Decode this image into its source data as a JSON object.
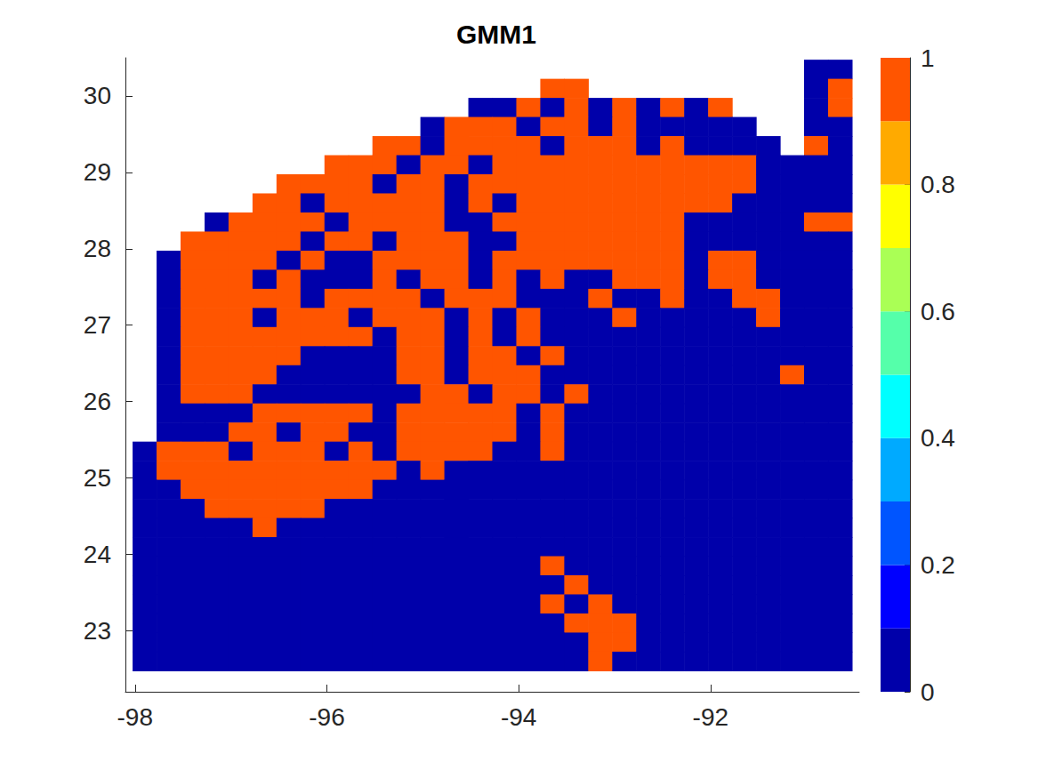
{
  "chart_data": {
    "type": "heatmap",
    "title": "GMM1",
    "xlim": [
      -98.1,
      -90.45
    ],
    "ylim": [
      22.2,
      30.5
    ],
    "xticks": [
      -98,
      -96,
      -94,
      -92
    ],
    "yticks": [
      23,
      24,
      25,
      26,
      27,
      28,
      29,
      30
    ],
    "grid": false,
    "colorbar": {
      "range": [
        0,
        1
      ],
      "ticks": [
        0,
        0.2,
        0.4,
        0.6,
        0.8,
        1
      ],
      "colors": [
        "#0000aa",
        "#0000ff",
        "#0055ff",
        "#00aaff",
        "#00ffff",
        "#55ffaa",
        "#aaff55",
        "#ffff00",
        "#ffaa00",
        "#ff5500"
      ]
    },
    "cells": {
      "lon": [
        -97.9,
        -97.65,
        -97.4,
        -97.15,
        -96.9,
        -96.65,
        -96.4,
        -96.15,
        -95.9,
        -95.65,
        -95.4,
        -95.15,
        -94.9,
        -94.65,
        -94.4,
        -94.15,
        -93.9,
        -93.65,
        -93.4,
        -93.15,
        -92.9,
        -92.65,
        -92.4,
        -92.15,
        -91.9,
        -91.65,
        -91.4,
        -91.15,
        -90.9,
        -90.65
      ],
      "lat": [
        30.35,
        30.1,
        29.85,
        29.6,
        29.35,
        29.1,
        28.85,
        28.6,
        28.35,
        28.1,
        27.85,
        27.6,
        27.35,
        27.1,
        26.85,
        26.6,
        26.35,
        26.1,
        25.85,
        25.6,
        25.35,
        25.1,
        24.85,
        24.6,
        24.35,
        24.1,
        23.85,
        23.6,
        23.35,
        23.1,
        22.85,
        22.6
      ],
      "values": [
        [
          null,
          null,
          null,
          null,
          null,
          null,
          null,
          null,
          null,
          null,
          null,
          null,
          null,
          null,
          null,
          null,
          null,
          null,
          null,
          null,
          null,
          null,
          null,
          null,
          null,
          null,
          null,
          null,
          0,
          0
        ],
        [
          null,
          null,
          null,
          null,
          null,
          null,
          null,
          null,
          null,
          null,
          null,
          null,
          null,
          null,
          null,
          null,
          null,
          1,
          1,
          null,
          null,
          null,
          null,
          null,
          null,
          null,
          null,
          null,
          0,
          1
        ],
        [
          null,
          null,
          null,
          null,
          null,
          null,
          null,
          null,
          null,
          null,
          null,
          null,
          null,
          null,
          0,
          0,
          1,
          0,
          1,
          0,
          1,
          0,
          1,
          0,
          1,
          null,
          null,
          null,
          0,
          1
        ],
        [
          null,
          null,
          null,
          null,
          null,
          null,
          null,
          null,
          null,
          null,
          null,
          null,
          0,
          1,
          1,
          1,
          0,
          1,
          1,
          0,
          1,
          0,
          0,
          0,
          0,
          0,
          null,
          null,
          0,
          0
        ],
        [
          null,
          null,
          null,
          null,
          null,
          null,
          null,
          null,
          null,
          null,
          1,
          1,
          0,
          1,
          1,
          1,
          1,
          0,
          1,
          1,
          1,
          0,
          1,
          0,
          0,
          0,
          0,
          null,
          1,
          0
        ],
        [
          null,
          null,
          null,
          null,
          null,
          null,
          null,
          null,
          1,
          1,
          1,
          0,
          1,
          1,
          0,
          1,
          1,
          1,
          1,
          1,
          1,
          1,
          1,
          1,
          1,
          1,
          0,
          0,
          0,
          0
        ],
        [
          null,
          null,
          null,
          null,
          null,
          null,
          1,
          1,
          1,
          1,
          0,
          1,
          1,
          0,
          1,
          1,
          1,
          1,
          1,
          1,
          1,
          1,
          1,
          1,
          1,
          1,
          0,
          0,
          0,
          0
        ],
        [
          null,
          null,
          null,
          null,
          null,
          1,
          1,
          0,
          1,
          1,
          1,
          1,
          1,
          0,
          1,
          0,
          1,
          1,
          1,
          1,
          1,
          1,
          1,
          1,
          1,
          0,
          0,
          0,
          0,
          0
        ],
        [
          null,
          null,
          null,
          0,
          1,
          1,
          1,
          1,
          0,
          1,
          1,
          1,
          1,
          0,
          0,
          1,
          1,
          1,
          1,
          1,
          1,
          1,
          1,
          0,
          0,
          0,
          0,
          0,
          1,
          1
        ],
        [
          null,
          null,
          1,
          1,
          1,
          1,
          1,
          0,
          1,
          1,
          0,
          1,
          1,
          1,
          0,
          0,
          1,
          1,
          1,
          1,
          1,
          1,
          1,
          0,
          0,
          0,
          0,
          0,
          0,
          0
        ],
        [
          null,
          0,
          1,
          1,
          1,
          1,
          0,
          1,
          0,
          0,
          1,
          1,
          1,
          1,
          0,
          1,
          1,
          1,
          1,
          1,
          1,
          1,
          1,
          0,
          1,
          1,
          0,
          0,
          0,
          0
        ],
        [
          null,
          0,
          1,
          1,
          1,
          0,
          1,
          0,
          0,
          0,
          1,
          0,
          1,
          1,
          0,
          1,
          0,
          1,
          0,
          0,
          1,
          1,
          1,
          0,
          1,
          1,
          0,
          0,
          0,
          0
        ],
        [
          null,
          0,
          1,
          1,
          1,
          1,
          1,
          0,
          1,
          1,
          1,
          1,
          0,
          1,
          1,
          1,
          0,
          0,
          0,
          1,
          0,
          0,
          1,
          0,
          0,
          1,
          1,
          0,
          0,
          0
        ],
        [
          null,
          0,
          1,
          1,
          1,
          0,
          1,
          1,
          1,
          0,
          1,
          1,
          1,
          0,
          1,
          0,
          1,
          0,
          0,
          0,
          1,
          0,
          0,
          0,
          0,
          0,
          1,
          0,
          0,
          0
        ],
        [
          null,
          0,
          1,
          1,
          1,
          1,
          1,
          1,
          1,
          1,
          0,
          1,
          1,
          0,
          1,
          0,
          1,
          0,
          0,
          0,
          0,
          0,
          0,
          0,
          0,
          0,
          0,
          0,
          0,
          0
        ],
        [
          null,
          0,
          1,
          1,
          1,
          1,
          1,
          0,
          0,
          0,
          0,
          1,
          1,
          0,
          1,
          1,
          0,
          1,
          0,
          0,
          0,
          0,
          0,
          0,
          0,
          0,
          0,
          0,
          0,
          0
        ],
        [
          null,
          0,
          1,
          1,
          1,
          1,
          0,
          0,
          0,
          0,
          0,
          1,
          1,
          0,
          1,
          1,
          1,
          0,
          0,
          0,
          0,
          0,
          0,
          0,
          0,
          0,
          0,
          1,
          0,
          0
        ],
        [
          null,
          0,
          1,
          1,
          1,
          0,
          0,
          0,
          0,
          0,
          0,
          0,
          1,
          1,
          0,
          1,
          1,
          0,
          1,
          0,
          0,
          0,
          0,
          0,
          0,
          0,
          0,
          0,
          0,
          0
        ],
        [
          null,
          0,
          0,
          0,
          0,
          1,
          1,
          1,
          1,
          1,
          0,
          1,
          1,
          1,
          1,
          1,
          0,
          1,
          0,
          0,
          0,
          0,
          0,
          0,
          0,
          0,
          0,
          0,
          0,
          0
        ],
        [
          null,
          0,
          0,
          0,
          1,
          1,
          0,
          1,
          1,
          0,
          0,
          1,
          1,
          1,
          1,
          1,
          0,
          1,
          0,
          0,
          0,
          0,
          0,
          0,
          0,
          0,
          0,
          0,
          0,
          0
        ],
        [
          0,
          1,
          1,
          1,
          0,
          1,
          1,
          1,
          0,
          1,
          0,
          1,
          1,
          1,
          1,
          0,
          0,
          1,
          0,
          0,
          0,
          0,
          0,
          0,
          0,
          0,
          0,
          0,
          0,
          0
        ],
        [
          0,
          1,
          1,
          1,
          1,
          1,
          1,
          1,
          1,
          1,
          1,
          0,
          1,
          0,
          0,
          0,
          0,
          0,
          0,
          0,
          0,
          0,
          0,
          0,
          0,
          0,
          0,
          0,
          0,
          0
        ],
        [
          0,
          0,
          1,
          1,
          1,
          1,
          1,
          1,
          1,
          1,
          0,
          0,
          0,
          0,
          0,
          0,
          0,
          0,
          0,
          0,
          0,
          0,
          0,
          0,
          0,
          0,
          0,
          0,
          0,
          0
        ],
        [
          0,
          0,
          0,
          1,
          1,
          1,
          1,
          1,
          0,
          0,
          0,
          0,
          0,
          0,
          0,
          0,
          0,
          0,
          0,
          0,
          0,
          0,
          0,
          0,
          0,
          0,
          0,
          0,
          0,
          0
        ],
        [
          0,
          0,
          0,
          0,
          0,
          1,
          0,
          0,
          0,
          0,
          0,
          0,
          0,
          0,
          0,
          0,
          0,
          0,
          0,
          0,
          0,
          0,
          0,
          0,
          0,
          0,
          0,
          0,
          0,
          0
        ],
        [
          0,
          0,
          0,
          0,
          0,
          0,
          0,
          0,
          0,
          0,
          0,
          0,
          0,
          0,
          0,
          0,
          0,
          0,
          0,
          0,
          0,
          0,
          0,
          0,
          0,
          0,
          0,
          0,
          0,
          0
        ],
        [
          0,
          0,
          0,
          0,
          0,
          0,
          0,
          0,
          0,
          0,
          0,
          0,
          0,
          0,
          0,
          0,
          0,
          1,
          0,
          0,
          0,
          0,
          0,
          0,
          0,
          0,
          0,
          0,
          0,
          0
        ],
        [
          0,
          0,
          0,
          0,
          0,
          0,
          0,
          0,
          0,
          0,
          0,
          0,
          0,
          0,
          0,
          0,
          0,
          0,
          1,
          0,
          0,
          0,
          0,
          0,
          0,
          0,
          0,
          0,
          0,
          0
        ],
        [
          0,
          0,
          0,
          0,
          0,
          0,
          0,
          0,
          0,
          0,
          0,
          0,
          0,
          0,
          0,
          0,
          0,
          1,
          0,
          1,
          0,
          0,
          0,
          0,
          0,
          0,
          0,
          0,
          0,
          0
        ],
        [
          0,
          0,
          0,
          0,
          0,
          0,
          0,
          0,
          0,
          0,
          0,
          0,
          0,
          0,
          0,
          0,
          0,
          0,
          1,
          1,
          1,
          0,
          0,
          0,
          0,
          0,
          0,
          0,
          0,
          0
        ],
        [
          0,
          0,
          0,
          0,
          0,
          0,
          0,
          0,
          0,
          0,
          0,
          0,
          0,
          0,
          0,
          0,
          0,
          0,
          0,
          1,
          1,
          0,
          0,
          0,
          0,
          0,
          0,
          0,
          0,
          0
        ],
        [
          0,
          0,
          0,
          0,
          0,
          0,
          0,
          0,
          0,
          0,
          0,
          0,
          0,
          0,
          0,
          0,
          0,
          0,
          0,
          1,
          0,
          0,
          0,
          0,
          0,
          0,
          0,
          0,
          0,
          0
        ]
      ]
    }
  }
}
